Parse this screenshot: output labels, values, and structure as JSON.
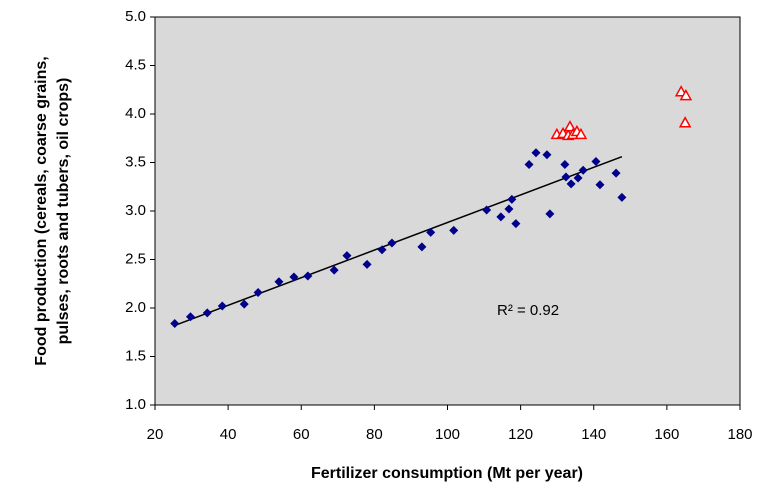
{
  "chart_data": {
    "type": "scatter",
    "xlabel": "Fertilizer consumption (Mt per year)",
    "ylabel": [
      "Food production (cereals, coarse grains,",
      "pulses, roots and tubers, oil crops)"
    ],
    "annotation": "R² = 0.92",
    "xlim": [
      20,
      180
    ],
    "ylim": [
      1,
      5
    ],
    "xticks": [
      20,
      40,
      60,
      80,
      100,
      120,
      140,
      160,
      180
    ],
    "yticks": [
      {
        "value": 1,
        "label": "1.0"
      },
      {
        "value": 1.5,
        "label": "1.5"
      },
      {
        "value": 2,
        "label": "2.0"
      },
      {
        "value": 2.5,
        "label": "2.5"
      },
      {
        "value": 3,
        "label": "3.0"
      },
      {
        "value": 3.5,
        "label": "3.5"
      },
      {
        "value": 4,
        "label": "4.0"
      },
      {
        "value": 4.5,
        "label": "4.5"
      },
      {
        "value": 5,
        "label": "5.0"
      }
    ],
    "grid": false,
    "background": "#d9d9d9",
    "series": [
      {
        "color": "#00008b",
        "marker": "diamond",
        "x": [
          25.4,
          29.7,
          34.3,
          38.4,
          44.4,
          48.2,
          53.9,
          58.0,
          61.8,
          69.0,
          72.5,
          78.0,
          82.1,
          84.8,
          93.0,
          95.4,
          101.7,
          110.7,
          114.6,
          116.8,
          117.6,
          118.7,
          122.3,
          124.2,
          127.2,
          128.0,
          132.1,
          132.4,
          133.8,
          135.7,
          137.1,
          140.6,
          141.7,
          146.1,
          147.7
        ],
        "values": [
          1.84,
          1.91,
          1.95,
          2.02,
          2.04,
          2.16,
          2.27,
          2.32,
          2.33,
          2.39,
          2.54,
          2.45,
          2.6,
          2.67,
          2.63,
          2.78,
          2.8,
          3.01,
          2.94,
          3.02,
          3.12,
          2.87,
          3.48,
          3.6,
          3.58,
          2.97,
          3.48,
          3.35,
          3.28,
          3.34,
          3.42,
          3.51,
          3.27,
          3.39,
          3.14
        ]
      },
      {
        "color": "#ff0000",
        "marker": "triangle",
        "x": [
          129.9,
          131.6,
          133.0,
          133.5,
          134.3,
          135.4,
          136.5,
          163.9,
          165.2,
          165.0
        ],
        "values": [
          3.79,
          3.8,
          3.78,
          3.87,
          3.79,
          3.82,
          3.79,
          4.23,
          4.19,
          3.91
        ]
      }
    ],
    "trendline": {
      "color": "#000000",
      "x": [
        25.4,
        147.7
      ],
      "y": [
        1.82,
        3.56
      ]
    }
  }
}
